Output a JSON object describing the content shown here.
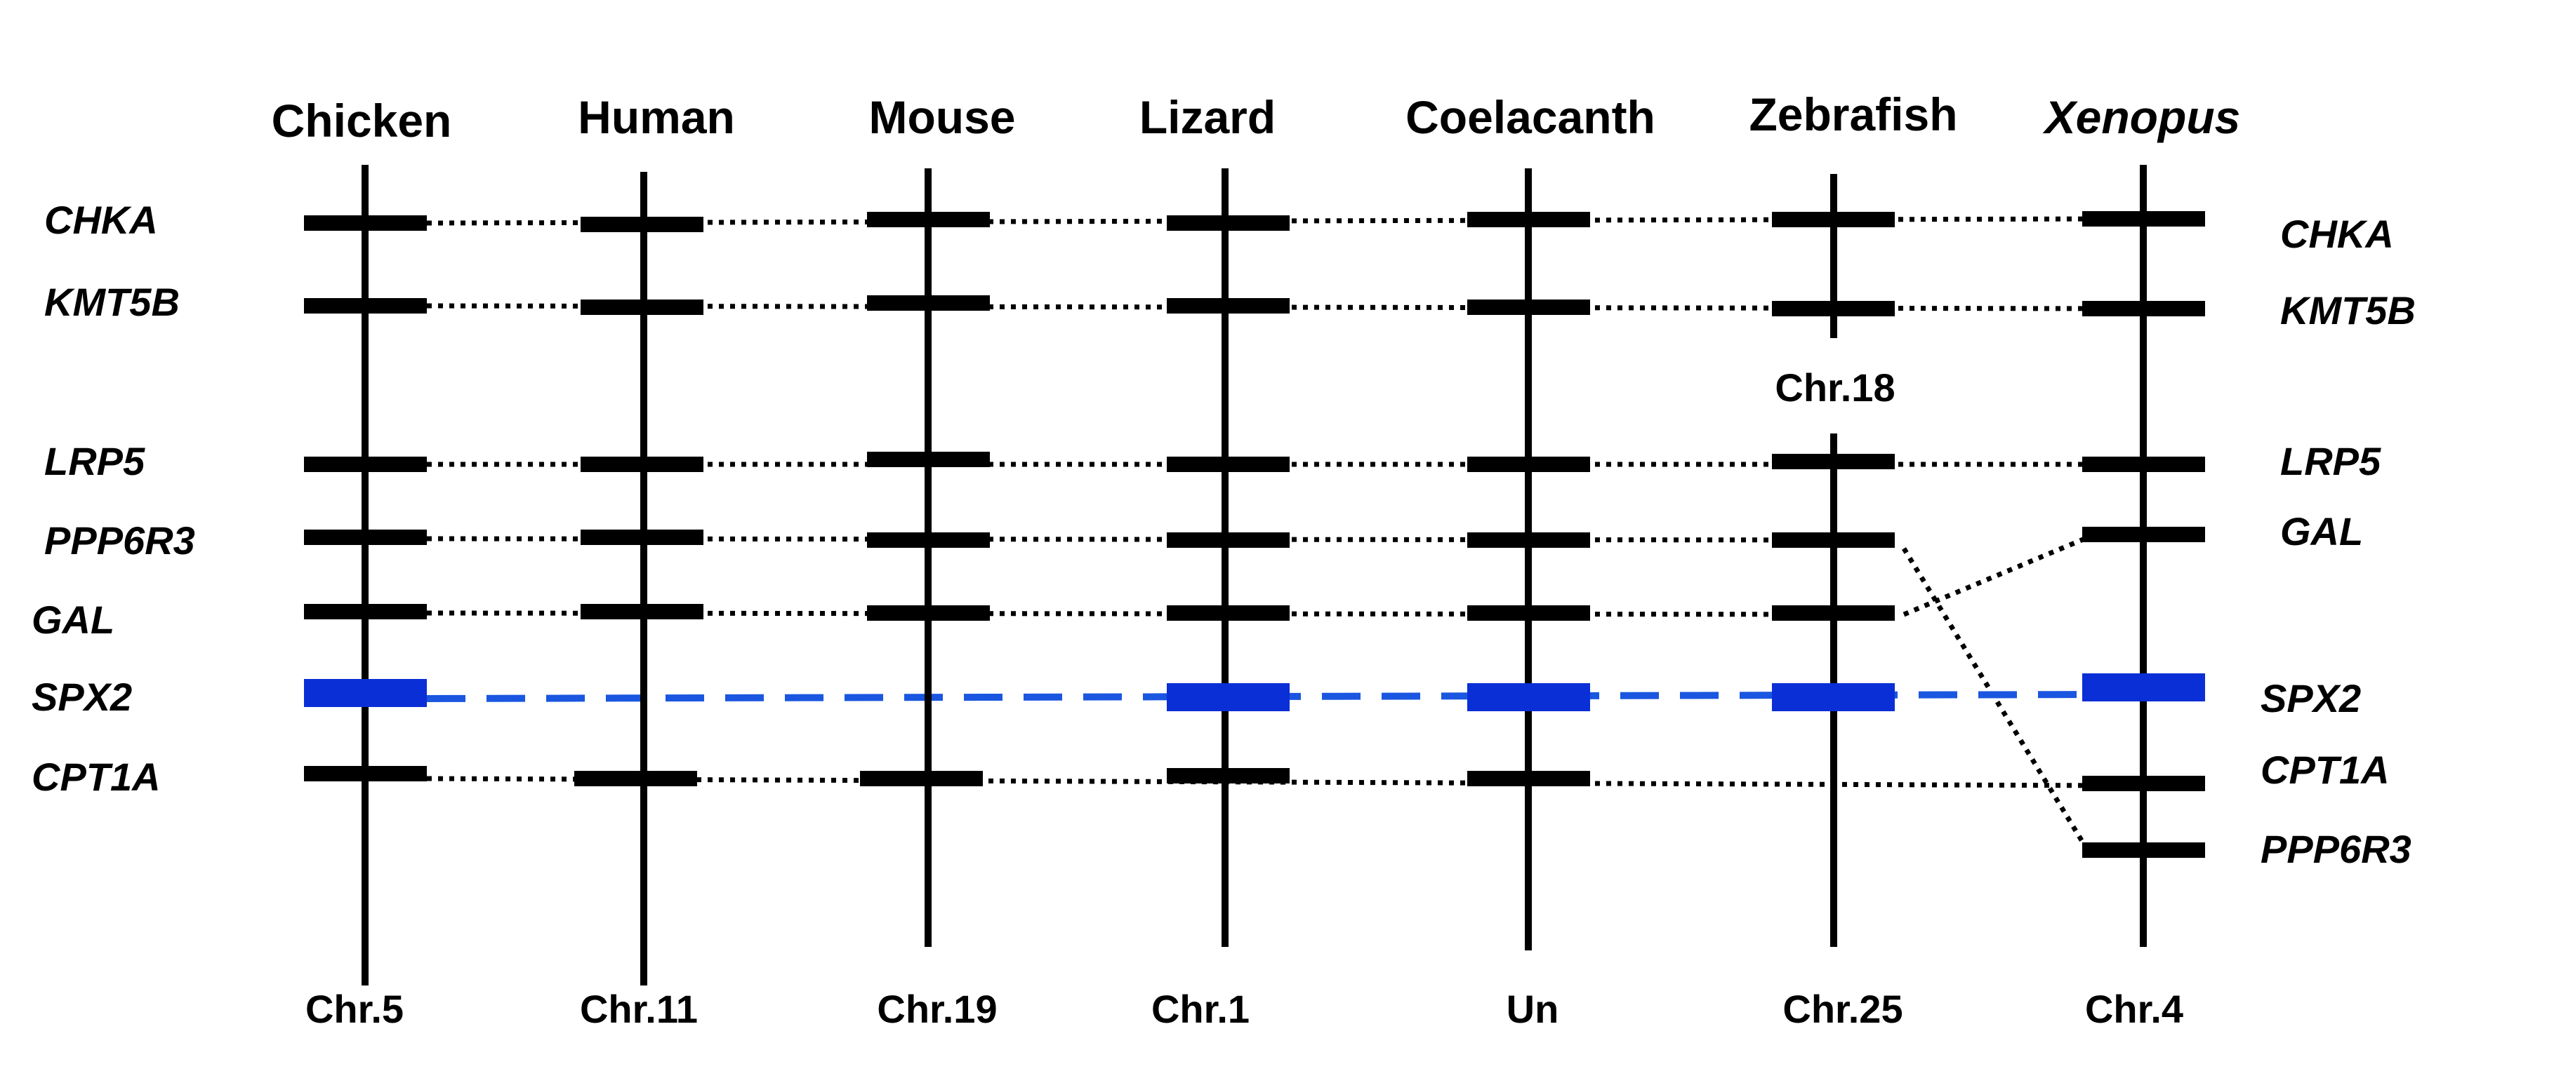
{
  "species": [
    {
      "name": "Chicken",
      "chr": "Chr.5"
    },
    {
      "name": "Human",
      "chr": "Chr.11"
    },
    {
      "name": "Mouse",
      "chr": "Chr.19"
    },
    {
      "name": "Lizard",
      "chr": "Chr.1"
    },
    {
      "name": "Coelacanth",
      "chr": "Un"
    },
    {
      "name": "Zebrafish",
      "chr": "Chr.25"
    },
    {
      "name": "Xenopus",
      "chr": "Chr.4"
    }
  ],
  "zebrafish_upper_chr": "Chr.18",
  "left_genes": [
    "CHKA",
    "KMT5B",
    "LRP5",
    "PPP6R3",
    "GAL",
    "SPX2",
    "CPT1A"
  ],
  "right_genes": [
    "CHKA",
    "KMT5B",
    "LRP5",
    "GAL",
    "SPX2",
    "CPT1A",
    "PPP6R3"
  ],
  "highlight_gene": "SPX2",
  "colors": {
    "axis": "#000000",
    "highlight": "#0a2fd6",
    "highlight_link": "#1a56e0"
  }
}
